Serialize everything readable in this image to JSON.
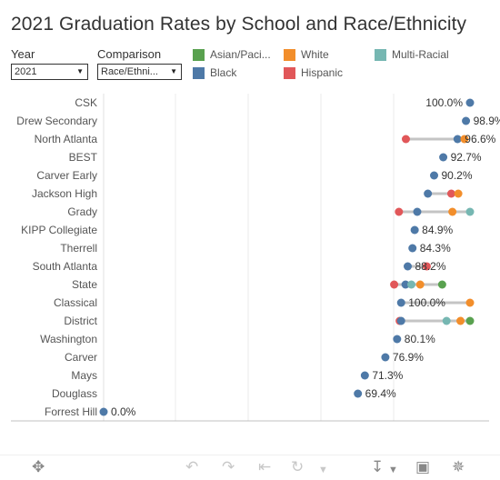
{
  "title": "2021 Graduation Rates by School and Race/Ethnicity",
  "controls": {
    "year_label": "Year",
    "year_value": "2021",
    "comparison_label": "Comparison",
    "comparison_value": "Race/Ethni..."
  },
  "legend": [
    {
      "label": "Asian/Paci...",
      "color": "#59a14f"
    },
    {
      "label": "Black",
      "color": "#4e79a7"
    },
    {
      "label": "White",
      "color": "#f28e2b"
    },
    {
      "label": "Hispanic",
      "color": "#e15759"
    },
    {
      "label": "Multi-Racial",
      "color": "#76b7b2"
    }
  ],
  "toolbar": {
    "icons": [
      "move-icon",
      "undo-icon",
      "redo-icon",
      "revert-icon",
      "refresh-icon",
      "dropdown-icon",
      "download-icon",
      "fullscreen-icon",
      "share-icon"
    ]
  },
  "chart_data": {
    "type": "dot-range",
    "title": "2021 Graduation Rates by School and Race/Ethnicity",
    "xlim": [
      0,
      100
    ],
    "grid": true,
    "categories": [
      "CSK",
      "Drew Secondary",
      "North Atlanta",
      "BEST",
      "Carver Early",
      "Jackson High",
      "Grady",
      "KIPP Collegiate",
      "Therrell",
      "South Atlanta",
      "State",
      "Classical",
      "District",
      "Washington",
      "Carver",
      "Mays",
      "Douglass",
      "Forrest Hill"
    ],
    "rows": [
      {
        "school": "CSK",
        "label": "100.0%",
        "points": [
          {
            "group": "Black",
            "value": 100.0
          }
        ]
      },
      {
        "school": "Drew Secondary",
        "label": "98.9%",
        "points": [
          {
            "group": "Black",
            "value": 98.9
          }
        ]
      },
      {
        "school": "North Atlanta",
        "label": "96.6%",
        "points": [
          {
            "group": "Hispanic",
            "value": 82.5
          },
          {
            "group": "Black",
            "value": 96.6
          },
          {
            "group": "White",
            "value": 98.5
          }
        ]
      },
      {
        "school": "BEST",
        "label": "92.7%",
        "points": [
          {
            "group": "Black",
            "value": 92.7
          }
        ]
      },
      {
        "school": "Carver Early",
        "label": "90.2%",
        "points": [
          {
            "group": "Black",
            "value": 90.2
          }
        ]
      },
      {
        "school": "Jackson High",
        "label": "",
        "points": [
          {
            "group": "Black",
            "value": 88.5
          },
          {
            "group": "Hispanic",
            "value": 94.9
          },
          {
            "group": "White",
            "value": 96.8
          }
        ]
      },
      {
        "school": "Grady",
        "label": "",
        "points": [
          {
            "group": "Hispanic",
            "value": 80.6
          },
          {
            "group": "Black",
            "value": 85.6
          },
          {
            "group": "White",
            "value": 95.2
          },
          {
            "group": "Multi-Racial",
            "value": 100.0
          }
        ]
      },
      {
        "school": "KIPP Collegiate",
        "label": "84.9%",
        "points": [
          {
            "group": "Black",
            "value": 84.9
          }
        ]
      },
      {
        "school": "Therrell",
        "label": "84.3%",
        "points": [
          {
            "group": "Black",
            "value": 84.3
          }
        ]
      },
      {
        "school": "South Atlanta",
        "label": "88.2%",
        "points": [
          {
            "group": "Black",
            "value": 83.0
          },
          {
            "group": "Hispanic",
            "value": 88.2
          }
        ]
      },
      {
        "school": "State",
        "label": "",
        "points": [
          {
            "group": "Hispanic",
            "value": 79.3
          },
          {
            "group": "Black",
            "value": 82.4
          },
          {
            "group": "Multi-Racial",
            "value": 84.0
          },
          {
            "group": "White",
            "value": 86.4
          },
          {
            "group": "Asian/Paci...",
            "value": 92.4
          }
        ]
      },
      {
        "school": "Classical",
        "label": "100.0%",
        "points": [
          {
            "group": "Black",
            "value": 81.2
          },
          {
            "group": "White",
            "value": 100.0
          }
        ]
      },
      {
        "school": "District",
        "label": "",
        "points": [
          {
            "group": "Hispanic",
            "value": 80.8
          },
          {
            "group": "Black",
            "value": 81.2
          },
          {
            "group": "Multi-Racial",
            "value": 93.6
          },
          {
            "group": "White",
            "value": 97.4
          },
          {
            "group": "Asian/Paci...",
            "value": 100.0
          }
        ]
      },
      {
        "school": "Washington",
        "label": "80.1%",
        "points": [
          {
            "group": "Black",
            "value": 80.1
          }
        ]
      },
      {
        "school": "Carver",
        "label": "76.9%",
        "points": [
          {
            "group": "Black",
            "value": 76.9
          }
        ]
      },
      {
        "school": "Mays",
        "label": "71.3%",
        "points": [
          {
            "group": "Black",
            "value": 71.3
          }
        ]
      },
      {
        "school": "Douglass",
        "label": "69.4%",
        "points": [
          {
            "group": "Black",
            "value": 69.4
          }
        ]
      },
      {
        "school": "Forrest Hill",
        "label": "0.0%",
        "points": [
          {
            "group": "Black",
            "value": 0.0
          }
        ]
      }
    ]
  }
}
